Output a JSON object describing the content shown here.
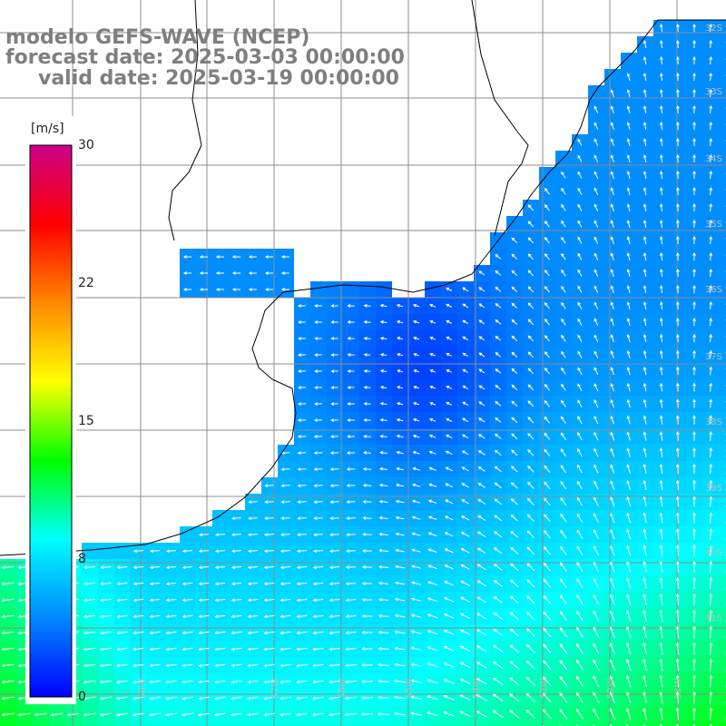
{
  "title": {
    "line1": "modelo GEFS-WAVE (NCEP)",
    "line2": "forecast date: 2025-03-03 00:00:00",
    "line3": "valid date: 2025-03-19 00:00:00"
  },
  "colorbar": {
    "unit": "[m/s]",
    "ticks": [
      "30",
      "22",
      "15",
      "8",
      "0"
    ],
    "tick_values": [
      30,
      22,
      15,
      8,
      0
    ],
    "colors": [
      "#0000ff",
      "#0088ff",
      "#00ffff",
      "#00ff00",
      "#ffff00",
      "#ff8800",
      "#ff0000",
      "#cc0088"
    ]
  },
  "map": {
    "land_color": "#ffffff",
    "grid_color": "#8c8c8c",
    "coast_color": "#000000",
    "lat_labels": [
      "32S",
      "33S",
      "34S",
      "35S",
      "36S",
      "37S",
      "38S",
      "39S",
      "40S",
      "41S"
    ],
    "lon_labels": [
      "58W",
      "57W",
      "56W",
      "55W",
      "54W",
      "53W",
      "52W",
      "51W"
    ]
  }
}
